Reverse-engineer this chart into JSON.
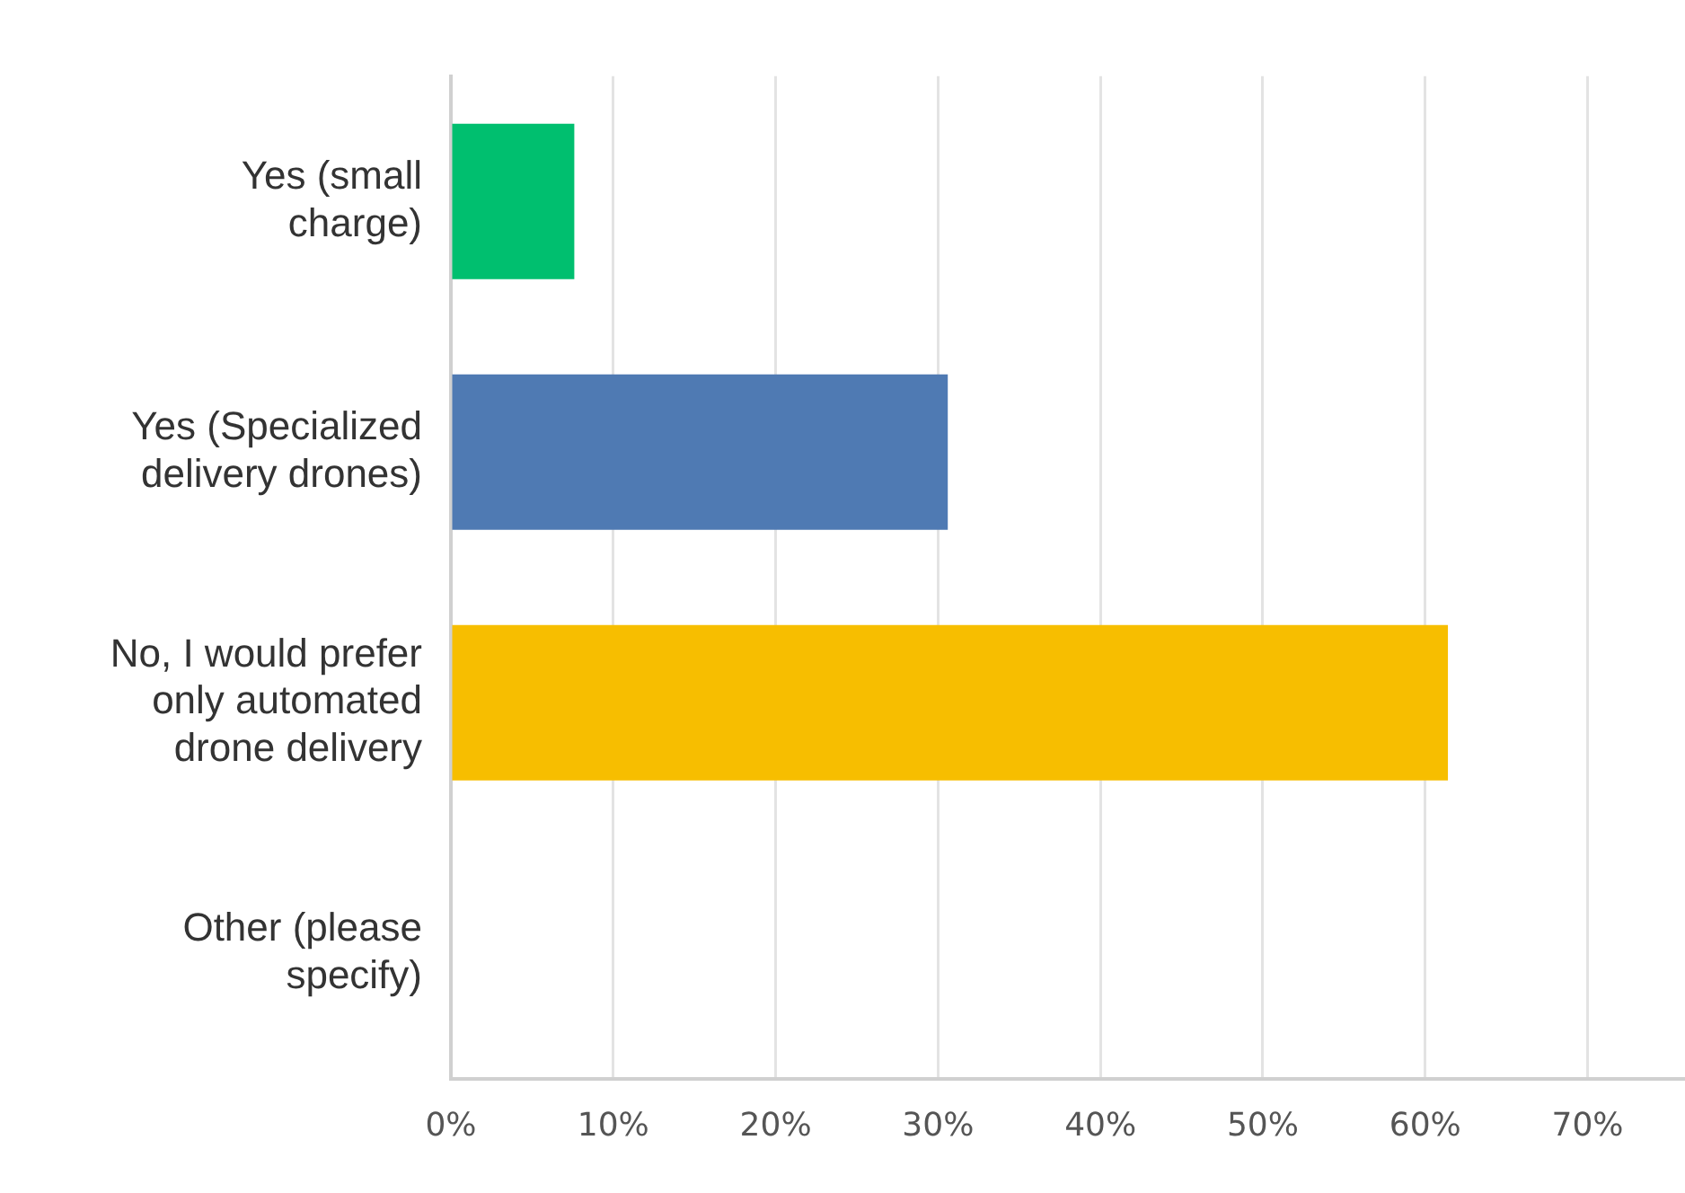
{
  "chart_data": {
    "type": "bar",
    "orientation": "horizontal",
    "categories": [
      "Yes (small\ncharge)",
      "Yes (Specialized\ndelivery drones)",
      "No, I would prefer\nonly automated\ndrone delivery",
      "Other (please\nspecify)"
    ],
    "values": [
      7.6,
      30.6,
      61.4,
      0
    ],
    "colors": [
      "#00bf6f",
      "#4f7ab3",
      "#f7be00",
      "#00bf6f"
    ],
    "xlim": [
      0,
      76
    ],
    "xticks": [
      {
        "value": 0,
        "label": "0%"
      },
      {
        "value": 10,
        "label": "10%"
      },
      {
        "value": 20,
        "label": "20%"
      },
      {
        "value": 30,
        "label": "30%"
      },
      {
        "value": 40,
        "label": "40%"
      },
      {
        "value": 50,
        "label": "50%"
      },
      {
        "value": 60,
        "label": "60%"
      },
      {
        "value": 70,
        "label": "70%"
      }
    ],
    "grid": "x"
  }
}
